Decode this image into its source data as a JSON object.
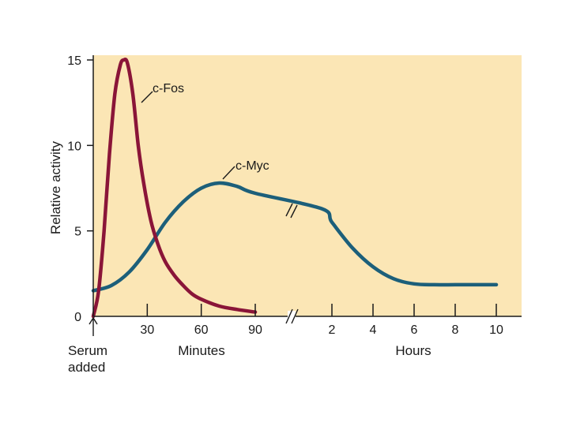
{
  "chart_data": {
    "type": "line",
    "title": "",
    "ylabel": "Relative activity",
    "ylim": [
      0,
      15
    ],
    "y_ticks": [
      "0",
      "5",
      "10",
      "15"
    ],
    "x_segments": [
      {
        "xlabel": "Minutes",
        "range": [
          0,
          90
        ],
        "ticks": [
          "30",
          "60",
          "90"
        ]
      },
      {
        "xlabel": "Hours",
        "range": [
          0,
          10
        ],
        "ticks": [
          "2",
          "4",
          "6",
          "8",
          "10"
        ]
      }
    ],
    "x_origin_label": [
      "Serum",
      "added"
    ],
    "series": [
      {
        "name": "c-Fos",
        "color": "#8a1538",
        "points_minutes": [
          [
            0,
            0
          ],
          [
            3,
            1.5
          ],
          [
            6,
            5
          ],
          [
            9,
            9.5
          ],
          [
            12,
            13
          ],
          [
            15,
            14.7
          ],
          [
            17,
            15
          ],
          [
            19,
            14.8
          ],
          [
            22,
            13
          ],
          [
            25,
            10
          ],
          [
            28,
            7.8
          ],
          [
            32,
            5.6
          ],
          [
            36,
            4.2
          ],
          [
            40,
            3.2
          ],
          [
            45,
            2.4
          ],
          [
            50,
            1.8
          ],
          [
            55,
            1.3
          ],
          [
            60,
            1.0
          ],
          [
            70,
            0.6
          ],
          [
            80,
            0.4
          ],
          [
            90,
            0.25
          ]
        ]
      },
      {
        "name": "c-Myc",
        "color": "#1c5f7a",
        "points_minutes": [
          [
            0,
            1.5
          ],
          [
            10,
            1.8
          ],
          [
            20,
            2.6
          ],
          [
            30,
            3.9
          ],
          [
            40,
            5.5
          ],
          [
            50,
            6.7
          ],
          [
            60,
            7.5
          ],
          [
            70,
            7.8
          ],
          [
            80,
            7.6
          ],
          [
            90,
            7.2
          ]
        ],
        "points_hours": [
          [
            1.5,
            6.3
          ],
          [
            2,
            5.5
          ],
          [
            3,
            4.0
          ],
          [
            4,
            2.9
          ],
          [
            5,
            2.2
          ],
          [
            6,
            1.9
          ],
          [
            7,
            1.85
          ],
          [
            8,
            1.85
          ],
          [
            9,
            1.85
          ],
          [
            10,
            1.85
          ]
        ]
      }
    ]
  }
}
